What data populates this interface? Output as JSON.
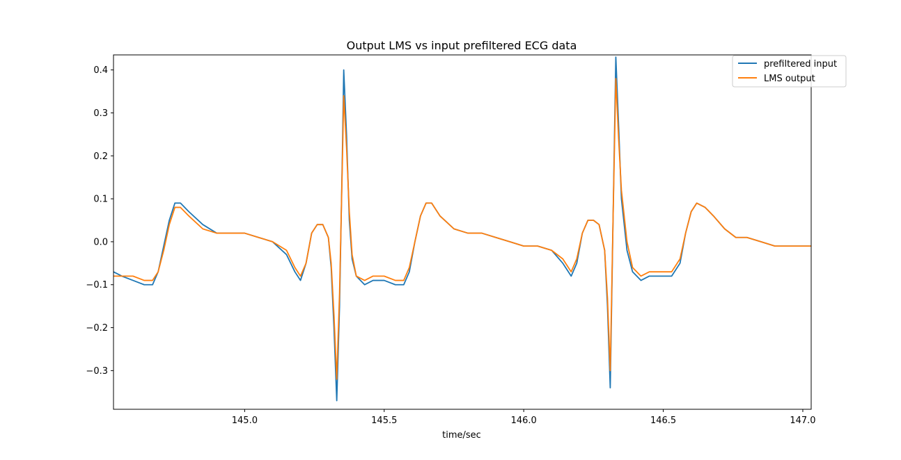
{
  "chart_data": {
    "type": "line",
    "title": "Output LMS vs input prefiltered ECG data",
    "xlabel": "time/sec",
    "ylabel": "",
    "xlim": [
      144.53,
      147.03
    ],
    "ylim": [
      -0.39,
      0.435
    ],
    "xticks": [
      145.0,
      145.5,
      146.0,
      146.5,
      147.0
    ],
    "xtick_labels": [
      "145.0",
      "145.5",
      "146.0",
      "146.5",
      "147.0"
    ],
    "yticks": [
      -0.3,
      -0.2,
      -0.1,
      0.0,
      0.1,
      0.2,
      0.3,
      0.4
    ],
    "ytick_labels": [
      "−0.3",
      "−0.2",
      "−0.1",
      "0.0",
      "0.1",
      "0.2",
      "0.3",
      "0.4"
    ],
    "grid": false,
    "legend_position": "top-right",
    "series": [
      {
        "name": "prefiltered input",
        "color": "#1f77b4",
        "points": [
          [
            144.53,
            -0.07
          ],
          [
            144.56,
            -0.08
          ],
          [
            144.6,
            -0.09
          ],
          [
            144.64,
            -0.1
          ],
          [
            144.67,
            -0.1
          ],
          [
            144.69,
            -0.07
          ],
          [
            144.71,
            -0.01
          ],
          [
            144.73,
            0.05
          ],
          [
            144.75,
            0.09
          ],
          [
            144.77,
            0.09
          ],
          [
            144.8,
            0.07
          ],
          [
            144.85,
            0.04
          ],
          [
            144.9,
            0.02
          ],
          [
            144.95,
            0.02
          ],
          [
            145.0,
            0.02
          ],
          [
            145.05,
            0.01
          ],
          [
            145.1,
            0.0
          ],
          [
            145.15,
            -0.03
          ],
          [
            145.18,
            -0.07
          ],
          [
            145.2,
            -0.09
          ],
          [
            145.22,
            -0.05
          ],
          [
            145.24,
            0.02
          ],
          [
            145.26,
            0.04
          ],
          [
            145.28,
            0.04
          ],
          [
            145.3,
            0.01
          ],
          [
            145.31,
            -0.06
          ],
          [
            145.32,
            -0.2
          ],
          [
            145.33,
            -0.37
          ],
          [
            145.34,
            -0.15
          ],
          [
            145.35,
            0.2
          ],
          [
            145.355,
            0.4
          ],
          [
            145.365,
            0.25
          ],
          [
            145.375,
            0.05
          ],
          [
            145.385,
            -0.04
          ],
          [
            145.4,
            -0.08
          ],
          [
            145.43,
            -0.1
          ],
          [
            145.46,
            -0.09
          ],
          [
            145.5,
            -0.09
          ],
          [
            145.54,
            -0.1
          ],
          [
            145.57,
            -0.1
          ],
          [
            145.59,
            -0.07
          ],
          [
            145.61,
            0.0
          ],
          [
            145.63,
            0.06
          ],
          [
            145.65,
            0.09
          ],
          [
            145.67,
            0.09
          ],
          [
            145.7,
            0.06
          ],
          [
            145.75,
            0.03
          ],
          [
            145.8,
            0.02
          ],
          [
            145.85,
            0.02
          ],
          [
            145.9,
            0.01
          ],
          [
            145.95,
            0.0
          ],
          [
            146.0,
            -0.01
          ],
          [
            146.05,
            -0.01
          ],
          [
            146.1,
            -0.02
          ],
          [
            146.14,
            -0.05
          ],
          [
            146.17,
            -0.08
          ],
          [
            146.19,
            -0.05
          ],
          [
            146.21,
            0.02
          ],
          [
            146.23,
            0.05
          ],
          [
            146.25,
            0.05
          ],
          [
            146.27,
            0.04
          ],
          [
            146.29,
            -0.02
          ],
          [
            146.3,
            -0.15
          ],
          [
            146.31,
            -0.34
          ],
          [
            146.32,
            0.05
          ],
          [
            146.33,
            0.43
          ],
          [
            146.34,
            0.27
          ],
          [
            146.35,
            0.1
          ],
          [
            146.37,
            -0.02
          ],
          [
            146.39,
            -0.07
          ],
          [
            146.42,
            -0.09
          ],
          [
            146.45,
            -0.08
          ],
          [
            146.49,
            -0.08
          ],
          [
            146.53,
            -0.08
          ],
          [
            146.56,
            -0.05
          ],
          [
            146.58,
            0.02
          ],
          [
            146.6,
            0.07
          ],
          [
            146.62,
            0.09
          ],
          [
            146.65,
            0.08
          ],
          [
            146.68,
            0.06
          ],
          [
            146.72,
            0.03
          ],
          [
            146.76,
            0.01
          ],
          [
            146.8,
            0.01
          ],
          [
            146.85,
            0.0
          ],
          [
            146.9,
            -0.01
          ],
          [
            146.95,
            -0.01
          ],
          [
            147.0,
            -0.01
          ],
          [
            147.03,
            -0.01
          ]
        ]
      },
      {
        "name": "LMS output",
        "color": "#ff7f0e",
        "points": [
          [
            144.53,
            -0.08
          ],
          [
            144.56,
            -0.08
          ],
          [
            144.6,
            -0.08
          ],
          [
            144.64,
            -0.09
          ],
          [
            144.67,
            -0.09
          ],
          [
            144.69,
            -0.07
          ],
          [
            144.71,
            -0.02
          ],
          [
            144.73,
            0.04
          ],
          [
            144.75,
            0.08
          ],
          [
            144.77,
            0.08
          ],
          [
            144.8,
            0.06
          ],
          [
            144.85,
            0.03
          ],
          [
            144.9,
            0.02
          ],
          [
            144.95,
            0.02
          ],
          [
            145.0,
            0.02
          ],
          [
            145.05,
            0.01
          ],
          [
            145.1,
            0.0
          ],
          [
            145.15,
            -0.02
          ],
          [
            145.18,
            -0.06
          ],
          [
            145.2,
            -0.08
          ],
          [
            145.22,
            -0.05
          ],
          [
            145.24,
            0.02
          ],
          [
            145.26,
            0.04
          ],
          [
            145.28,
            0.04
          ],
          [
            145.3,
            0.01
          ],
          [
            145.31,
            -0.05
          ],
          [
            145.32,
            -0.17
          ],
          [
            145.33,
            -0.32
          ],
          [
            145.34,
            -0.12
          ],
          [
            145.35,
            0.18
          ],
          [
            145.355,
            0.34
          ],
          [
            145.365,
            0.22
          ],
          [
            145.375,
            0.07
          ],
          [
            145.385,
            -0.03
          ],
          [
            145.4,
            -0.08
          ],
          [
            145.43,
            -0.09
          ],
          [
            145.46,
            -0.08
          ],
          [
            145.5,
            -0.08
          ],
          [
            145.54,
            -0.09
          ],
          [
            145.57,
            -0.09
          ],
          [
            145.59,
            -0.06
          ],
          [
            145.61,
            0.0
          ],
          [
            145.63,
            0.06
          ],
          [
            145.65,
            0.09
          ],
          [
            145.67,
            0.09
          ],
          [
            145.7,
            0.06
          ],
          [
            145.75,
            0.03
          ],
          [
            145.8,
            0.02
          ],
          [
            145.85,
            0.02
          ],
          [
            145.9,
            0.01
          ],
          [
            145.95,
            0.0
          ],
          [
            146.0,
            -0.01
          ],
          [
            146.05,
            -0.01
          ],
          [
            146.1,
            -0.02
          ],
          [
            146.14,
            -0.04
          ],
          [
            146.17,
            -0.07
          ],
          [
            146.19,
            -0.04
          ],
          [
            146.21,
            0.02
          ],
          [
            146.23,
            0.05
          ],
          [
            146.25,
            0.05
          ],
          [
            146.27,
            0.04
          ],
          [
            146.29,
            -0.02
          ],
          [
            146.3,
            -0.13
          ],
          [
            146.31,
            -0.3
          ],
          [
            146.32,
            0.05
          ],
          [
            146.33,
            0.38
          ],
          [
            146.34,
            0.24
          ],
          [
            146.35,
            0.12
          ],
          [
            146.37,
            0.0
          ],
          [
            146.39,
            -0.06
          ],
          [
            146.42,
            -0.08
          ],
          [
            146.45,
            -0.07
          ],
          [
            146.49,
            -0.07
          ],
          [
            146.53,
            -0.07
          ],
          [
            146.56,
            -0.04
          ],
          [
            146.58,
            0.02
          ],
          [
            146.6,
            0.07
          ],
          [
            146.62,
            0.09
          ],
          [
            146.65,
            0.08
          ],
          [
            146.68,
            0.06
          ],
          [
            146.72,
            0.03
          ],
          [
            146.76,
            0.01
          ],
          [
            146.8,
            0.01
          ],
          [
            146.85,
            0.0
          ],
          [
            146.9,
            -0.01
          ],
          [
            146.95,
            -0.01
          ],
          [
            147.0,
            -0.01
          ],
          [
            147.03,
            -0.01
          ]
        ]
      }
    ]
  }
}
